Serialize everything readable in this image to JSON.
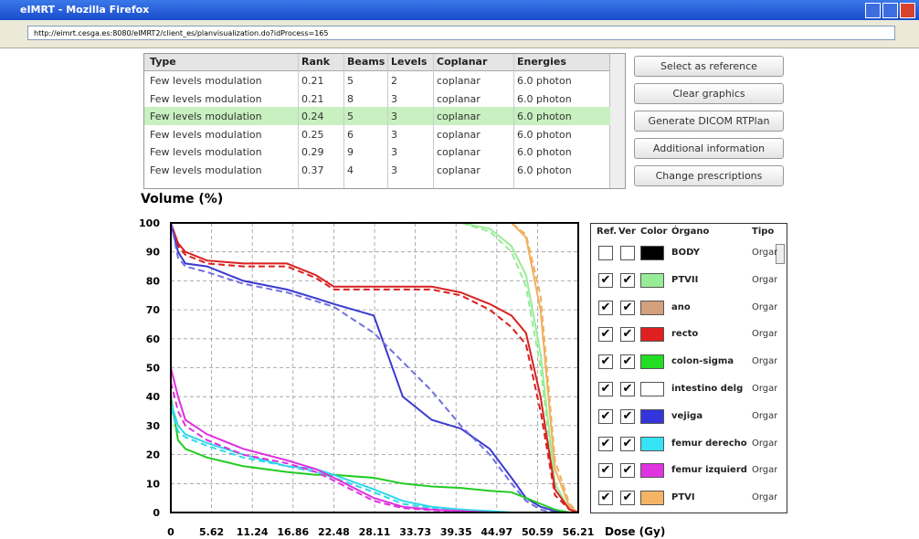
{
  "window": {
    "title": "eIMRT - Mozilla Firefox",
    "url": "http://eimrt.cesga.es:8080/eIMRT2/client_es/planvisualization.do?idProcess=165"
  },
  "table": {
    "headers": [
      "Type",
      "Rank",
      "Beams",
      "Levels",
      "Coplanar",
      "Energies"
    ],
    "selected_row": 2,
    "rows": [
      [
        "Few levels modulation",
        "0.21",
        "5",
        "2",
        "coplanar",
        "6.0 photon"
      ],
      [
        "Few levels modulation",
        "0.21",
        "8",
        "3",
        "coplanar",
        "6.0 photon"
      ],
      [
        "Few levels modulation",
        "0.24",
        "5",
        "3",
        "coplanar",
        "6.0 photon"
      ],
      [
        "Few levels modulation",
        "0.25",
        "6",
        "3",
        "coplanar",
        "6.0 photon"
      ],
      [
        "Few levels modulation",
        "0.29",
        "9",
        "3",
        "coplanar",
        "6.0 photon"
      ],
      [
        "Few levels modulation",
        "0.37",
        "4",
        "3",
        "coplanar",
        "6.0 photon"
      ]
    ]
  },
  "buttons": [
    "Select as reference",
    "Clear graphics",
    "Generate DICOM RTPlan",
    "Additional information",
    "Change prescriptions"
  ],
  "chart_data": {
    "type": "line",
    "ylabel": "Volume (%)",
    "xlabel": "Dose (Gy)",
    "xlim": [
      0,
      56.21
    ],
    "ylim": [
      0,
      100
    ],
    "xticks": [
      0,
      5.62,
      11.24,
      16.86,
      22.48,
      28.11,
      33.73,
      39.35,
      44.97,
      50.59,
      56.21
    ],
    "yticks": [
      0,
      10,
      20,
      30,
      40,
      50,
      60,
      70,
      80,
      90,
      100
    ],
    "grid": true,
    "x": [
      0,
      1,
      2,
      5,
      10,
      16,
      20,
      22.5,
      28,
      32,
      36,
      40,
      44,
      47,
      49,
      51,
      53,
      55,
      56.21
    ],
    "series": [
      {
        "color": "#98ec98",
        "dashed": false,
        "values": [
          100,
          100,
          100,
          100,
          100,
          100,
          100,
          100,
          100,
          100,
          100,
          100,
          98,
          92,
          82,
          55,
          10,
          1,
          0
        ]
      },
      {
        "color": "#98ec98",
        "dashed": true,
        "values": [
          100,
          100,
          100,
          100,
          100,
          100,
          100,
          100,
          100,
          100,
          100,
          100,
          97,
          90,
          78,
          50,
          8,
          1,
          0
        ]
      },
      {
        "color": "#f0b060",
        "dashed": false,
        "values": [
          100,
          100,
          100,
          100,
          100,
          100,
          100,
          100,
          100,
          100,
          100,
          100,
          100,
          100,
          95,
          70,
          15,
          2,
          0
        ]
      },
      {
        "color": "#f0b060",
        "dashed": true,
        "values": [
          100,
          100,
          100,
          100,
          100,
          100,
          100,
          100,
          100,
          100,
          100,
          100,
          100,
          100,
          96,
          75,
          18,
          3,
          0
        ]
      },
      {
        "color": "#d82020",
        "dashed": false,
        "values": [
          100,
          93,
          90,
          87,
          86,
          86,
          82,
          78,
          78,
          78,
          78,
          76,
          72,
          68,
          62,
          40,
          8,
          1,
          0
        ]
      },
      {
        "color": "#d82020",
        "dashed": true,
        "values": [
          100,
          92,
          89,
          86,
          85,
          85,
          81,
          77,
          77,
          77,
          77,
          75,
          70,
          64,
          58,
          35,
          6,
          1,
          0
        ]
      },
      {
        "color": "#3a3ad0",
        "dashed": false,
        "values": [
          100,
          90,
          86,
          85,
          80,
          77,
          74,
          72,
          68,
          40,
          32,
          29,
          22,
          12,
          5,
          2,
          0.5,
          0,
          0
        ]
      },
      {
        "color": "#7070e0",
        "dashed": true,
        "values": [
          100,
          88,
          85,
          83,
          79,
          76,
          73,
          71,
          62,
          52,
          42,
          30,
          20,
          10,
          4,
          1,
          0,
          0,
          0
        ]
      },
      {
        "color": "#22cc22",
        "dashed": false,
        "values": [
          40,
          25,
          22,
          19,
          16,
          14,
          13,
          13,
          12,
          10,
          9,
          8.5,
          7.5,
          7,
          5,
          3,
          1,
          0,
          0
        ]
      },
      {
        "color": "#30d8e8",
        "dashed": false,
        "values": [
          38,
          30,
          27,
          24,
          20,
          16,
          15,
          13,
          8,
          4,
          2,
          1,
          0.5,
          0,
          0,
          0,
          0,
          0,
          0
        ]
      },
      {
        "color": "#30d8e8",
        "dashed": true,
        "values": [
          36,
          28,
          26,
          23,
          19,
          16,
          14,
          12,
          7,
          3,
          1.5,
          0.8,
          0.3,
          0,
          0,
          0,
          0,
          0,
          0
        ]
      },
      {
        "color": "#e030e0",
        "dashed": false,
        "values": [
          50,
          40,
          32,
          27,
          22,
          18,
          15,
          12,
          5,
          2,
          1,
          0.5,
          0,
          0,
          0,
          0,
          0,
          0,
          0
        ]
      },
      {
        "color": "#e030e0",
        "dashed": true,
        "values": [
          45,
          35,
          30,
          25,
          20,
          17,
          14,
          11,
          4,
          1.5,
          0.8,
          0.3,
          0,
          0,
          0,
          0,
          0,
          0,
          0
        ]
      }
    ]
  },
  "organs": {
    "headers": [
      "Ref.",
      "Ver",
      "Color",
      "Órgano",
      "Tipo"
    ],
    "rows": [
      {
        "name": "BODY",
        "color": "#000000",
        "ref": false,
        "ver": false,
        "tipo": "Organ"
      },
      {
        "name": "PTVII",
        "color": "#98ec98",
        "ref": true,
        "ver": true,
        "tipo": "Organ"
      },
      {
        "name": "ano",
        "color": "#d4a07c",
        "ref": true,
        "ver": true,
        "tipo": "Organ"
      },
      {
        "name": "recto",
        "color": "#e02020",
        "ref": true,
        "ver": true,
        "tipo": "Organ"
      },
      {
        "name": "colon-sigma",
        "color": "#22dd22",
        "ref": true,
        "ver": true,
        "tipo": "Organ"
      },
      {
        "name": "intestino delg",
        "color": "#ffffff",
        "ref": true,
        "ver": true,
        "tipo": "Organ"
      },
      {
        "name": "vejiga",
        "color": "#3434dc",
        "ref": true,
        "ver": true,
        "tipo": "Organ"
      },
      {
        "name": "femur derecho",
        "color": "#34e4f4",
        "ref": true,
        "ver": true,
        "tipo": "Organ"
      },
      {
        "name": "femur izquierd",
        "color": "#e034e0",
        "ref": true,
        "ver": true,
        "tipo": "Organ"
      },
      {
        "name": "PTVI",
        "color": "#f4b464",
        "ref": true,
        "ver": true,
        "tipo": "Organ"
      }
    ]
  }
}
